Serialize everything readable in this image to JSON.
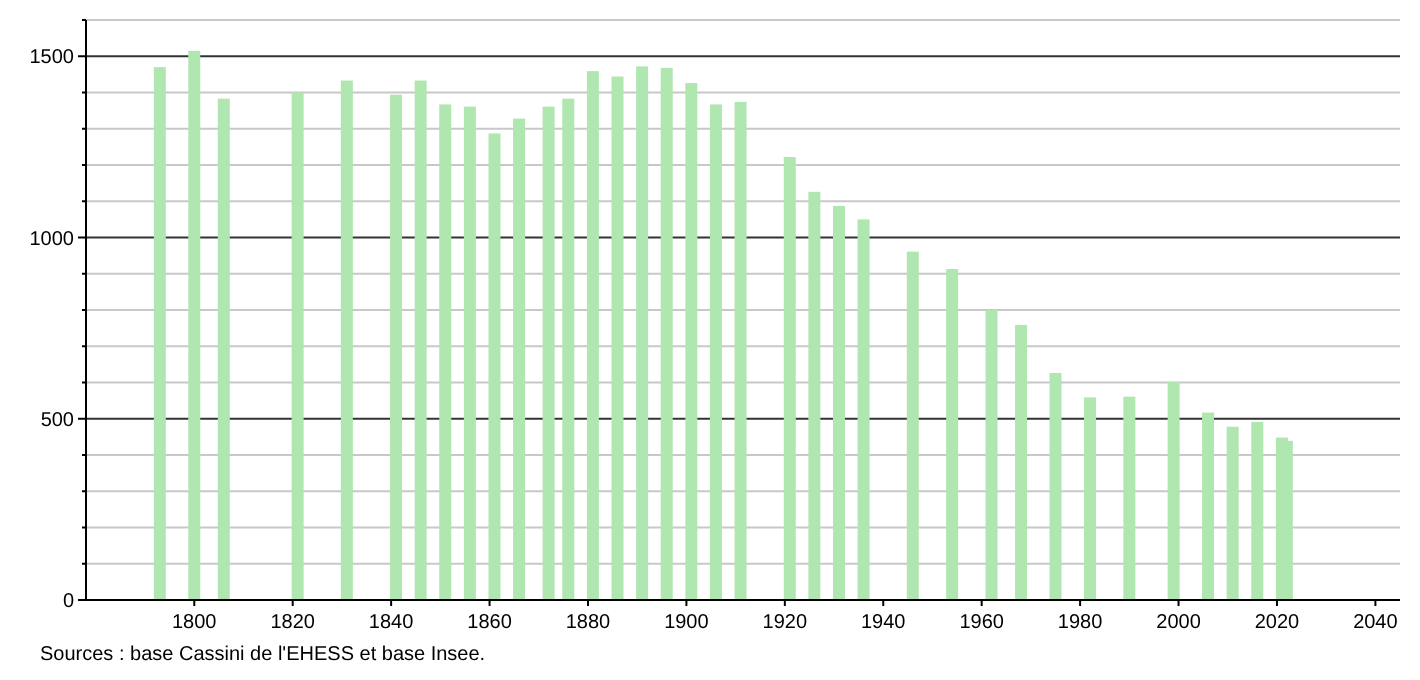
{
  "chart_data": {
    "type": "bar",
    "x": [
      1793,
      1800,
      1806,
      1821,
      1831,
      1841,
      1846,
      1851,
      1856,
      1861,
      1866,
      1872,
      1876,
      1881,
      1886,
      1891,
      1896,
      1901,
      1906,
      1911,
      1921,
      1926,
      1931,
      1936,
      1946,
      1954,
      1962,
      1968,
      1975,
      1982,
      1990,
      1999,
      2006,
      2011,
      2016,
      2021,
      2022
    ],
    "values": [
      1470,
      1515,
      1383,
      1400,
      1433,
      1394,
      1433,
      1367,
      1361,
      1287,
      1328,
      1361,
      1383,
      1459,
      1444,
      1472,
      1468,
      1426,
      1367,
      1374,
      1222,
      1126,
      1087,
      1050,
      961,
      913,
      800,
      759,
      626,
      559,
      561,
      602,
      517,
      478,
      491,
      448,
      439
    ],
    "color": "#b0e6b0",
    "xlim": [
      1778,
      2045
    ],
    "xticks": [
      1800,
      1820,
      1840,
      1860,
      1880,
      1900,
      1920,
      1940,
      1960,
      1980,
      2000,
      2020,
      2040
    ],
    "ylim": [
      0,
      1600
    ],
    "yticks": [
      0,
      {
        "value": 100,
        "label": null
      },
      {
        "value": 200,
        "label": null
      },
      {
        "value": 300,
        "label": null
      },
      {
        "value": 400,
        "label": null
      },
      500,
      {
        "value": 600,
        "label": null
      },
      {
        "value": 700,
        "label": null
      },
      {
        "value": 800,
        "label": null
      },
      {
        "value": 900,
        "label": null
      },
      1000,
      {
        "value": 1100,
        "label": null
      },
      {
        "value": 1200,
        "label": null
      },
      {
        "value": 1300,
        "label": null
      },
      {
        "value": 1400,
        "label": null
      },
      1500,
      {
        "value": 1600,
        "label": null
      }
    ],
    "grid": "y",
    "annotations": [
      "Sources : base Cassini de l'EHESS et base Insee."
    ]
  }
}
